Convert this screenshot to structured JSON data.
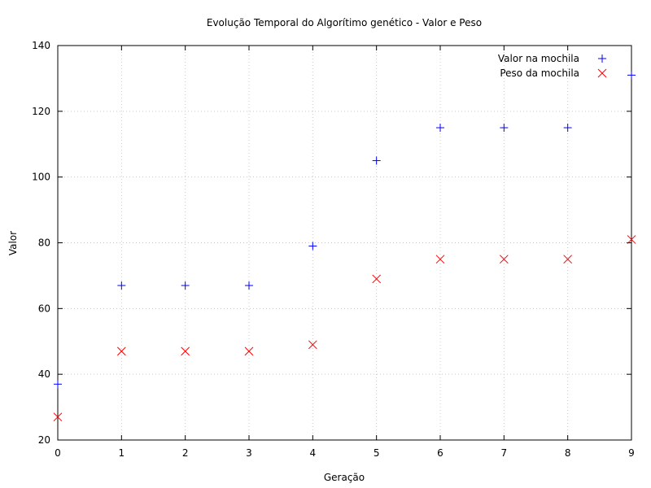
{
  "chart_data": {
    "type": "scatter",
    "title": "Evolução Temporal do Algorítimo genético - Valor e Peso",
    "xlabel": "Geração",
    "ylabel": "Valor",
    "xlim": [
      0,
      9
    ],
    "ylim": [
      20,
      140
    ],
    "xticks": [
      "0",
      "1",
      "2",
      "3",
      "4",
      "5",
      "6",
      "7",
      "8",
      "9"
    ],
    "yticks": [
      "20",
      "40",
      "60",
      "80",
      "100",
      "120",
      "140"
    ],
    "grid": true,
    "legend_position": "top-right",
    "series": [
      {
        "name": "Valor na mochila",
        "marker": "plus",
        "color": "#0000ff",
        "x": [
          0,
          1,
          2,
          3,
          4,
          5,
          6,
          7,
          8,
          9
        ],
        "y": [
          37,
          67,
          67,
          67,
          79,
          105,
          115,
          115,
          115,
          131
        ]
      },
      {
        "name": "Peso da mochila",
        "marker": "cross",
        "color": "#ff0000",
        "x": [
          0,
          1,
          2,
          3,
          4,
          5,
          6,
          7,
          8,
          9
        ],
        "y": [
          27,
          47,
          47,
          47,
          49,
          69,
          75,
          75,
          75,
          81
        ]
      }
    ]
  }
}
